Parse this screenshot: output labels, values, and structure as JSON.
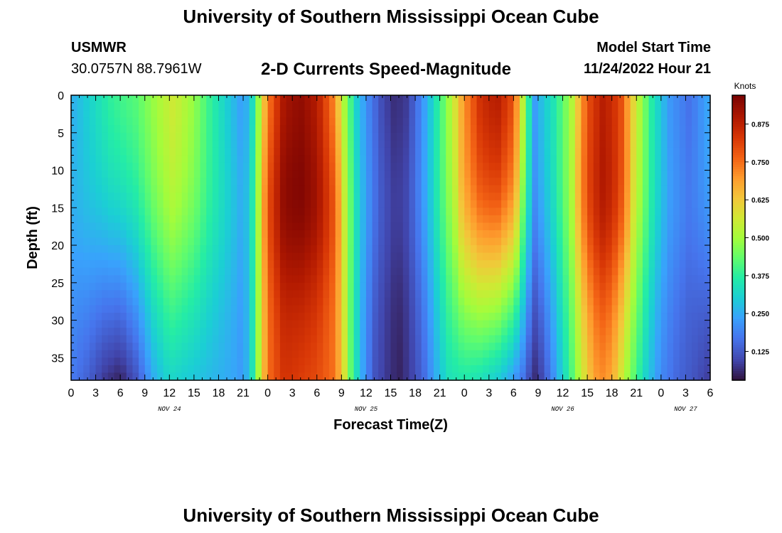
{
  "header": {
    "title": "University of Southern Mississippi Ocean Cube",
    "station_name": "USMWR",
    "station_coords": "30.0757N  88.7961W",
    "subtitle": "2-D Currents Speed-Magnitude",
    "model_label": "Model Start Time",
    "model_time": "11/24/2022 Hour 21"
  },
  "footer": {
    "title": "University of Southern Mississippi Ocean Cube"
  },
  "chart_data": {
    "type": "heatmap",
    "title": "2-D Currents Speed-Magnitude",
    "xlabel": "Forecast Time(Z)",
    "ylabel": "Depth (ft)",
    "x_start_hour_nov24": 0,
    "x_hours_total": 78,
    "xlim_hours": [
      0,
      78
    ],
    "ylim_ft": [
      0,
      38
    ],
    "x_tick_labels": [
      "0",
      "3",
      "6",
      "9",
      "12",
      "15",
      "18",
      "21",
      "0",
      "3",
      "6",
      "9",
      "12",
      "15",
      "18",
      "21",
      "0",
      "3",
      "6",
      "9",
      "12",
      "15",
      "18",
      "21",
      "0",
      "3",
      "6"
    ],
    "x_tick_hours": [
      0,
      3,
      6,
      9,
      12,
      15,
      18,
      21,
      24,
      27,
      30,
      33,
      36,
      39,
      42,
      45,
      48,
      51,
      54,
      57,
      60,
      63,
      66,
      69,
      72,
      75,
      78
    ],
    "date_labels": [
      {
        "label": "NOV 24",
        "hour": 12
      },
      {
        "label": "NOV 25",
        "hour": 36
      },
      {
        "label": "NOV 26",
        "hour": 60
      },
      {
        "label": "NOV 27",
        "hour": 75
      }
    ],
    "y_ticks": [
      0,
      5,
      10,
      15,
      20,
      25,
      30,
      35
    ],
    "y_tick_labels": [
      "0",
      "5",
      "10",
      "15",
      "20",
      "25",
      "30",
      "35"
    ],
    "colorbar": {
      "label": "Knots",
      "min": 0.03,
      "max": 0.97,
      "ticks": [
        0.125,
        0.25,
        0.375,
        0.5,
        0.625,
        0.75,
        0.875
      ],
      "tick_labels": [
        "0.125",
        "0.250",
        "0.375",
        "0.500",
        "0.625",
        "0.750",
        "0.875"
      ]
    },
    "features": [
      {
        "hour": 0,
        "description": "surface ~0.25, bottom ~0.18"
      },
      {
        "hour": 6,
        "description": "surface ~0.40, bottom ~0.05"
      },
      {
        "hour": 12.5,
        "description": "surface max ~0.55, bottom ~0.30"
      },
      {
        "hour": 21,
        "description": "minimum ~0.20"
      },
      {
        "hour": 28,
        "description": "maximum ~0.92 surface, ~0.80 bottom"
      },
      {
        "hour": 32,
        "description": "decreasing to ~0.45"
      },
      {
        "hour": 40,
        "description": "minimum ~0.05"
      },
      {
        "hour": 51,
        "description": "maximum ~0.88 surface, ~0.30 bottom"
      },
      {
        "hour": 56.5,
        "description": "minimum ~0.15"
      },
      {
        "hour": 65,
        "description": "maximum ~0.85"
      },
      {
        "hour": 78,
        "description": "minimum ~0.10"
      }
    ]
  }
}
